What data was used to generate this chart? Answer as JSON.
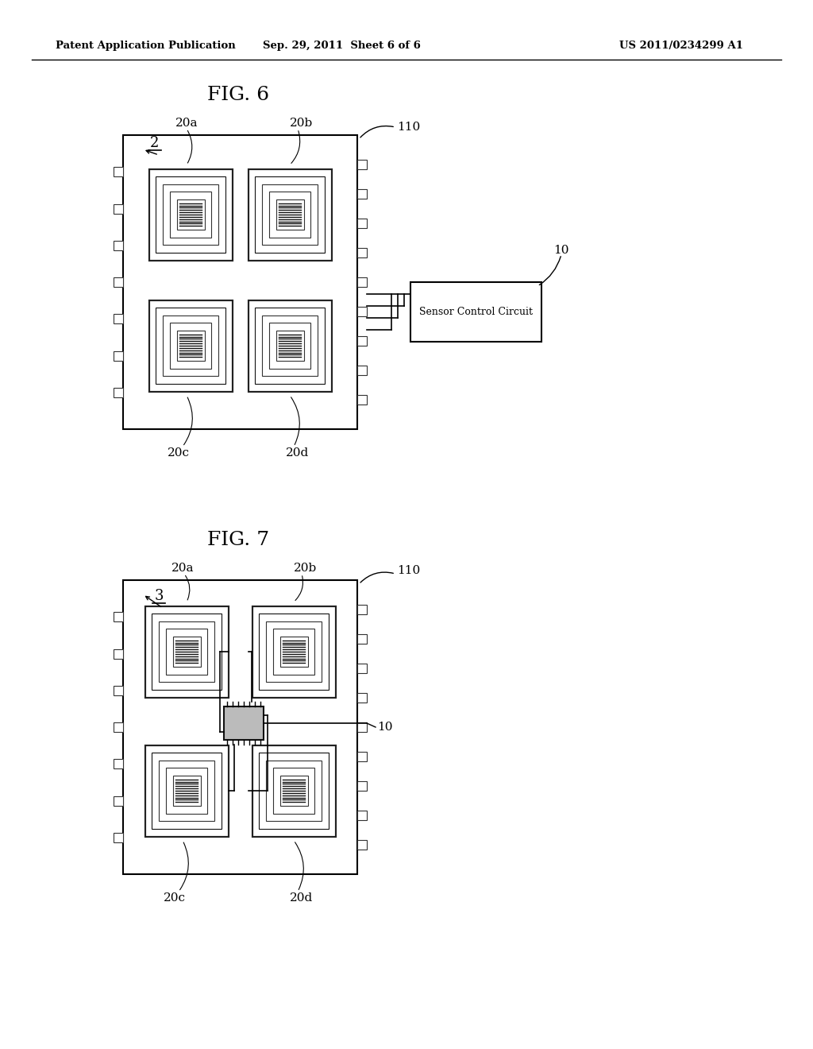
{
  "bg_color": "#ffffff",
  "header_left": "Patent Application Publication",
  "header_center": "Sep. 29, 2011  Sheet 6 of 6",
  "header_right": "US 2011/0234299 A1",
  "fig6_title": "FIG. 6",
  "fig7_title": "FIG. 7",
  "sensor_control_label": "Sensor Control Circuit",
  "fig6_label": "2",
  "fig7_label": "3",
  "label_110": "110",
  "label_10": "10",
  "labels_sensors": [
    "20a",
    "20b",
    "20c",
    "20d"
  ]
}
